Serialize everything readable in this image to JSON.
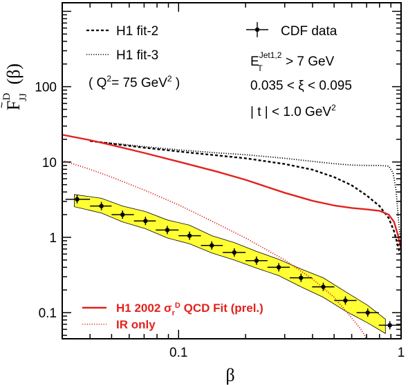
{
  "chart_data": {
    "type": "line",
    "x_scale": "log",
    "y_scale": "log",
    "xlim": [
      0.03,
      1.0
    ],
    "ylim": [
      0.045,
      1300
    ],
    "xlabel": "β",
    "ylabel": "F̃JJD (β)",
    "x_ticks": [
      {
        "value": 0.1,
        "label": "0.1"
      },
      {
        "value": 1,
        "label": "1"
      }
    ],
    "y_ticks": [
      {
        "value": 0.1,
        "label": "0.1"
      },
      {
        "value": 1,
        "label": "1"
      },
      {
        "value": 10,
        "label": "10"
      },
      {
        "value": 100,
        "label": "100"
      }
    ],
    "legend_top_left": [
      {
        "label": "H1 fit-2",
        "style": "dashed"
      },
      {
        "label": "H1 fit-3",
        "style": "dotted"
      },
      {
        "label": "( Q²= 75 GeV² )",
        "style": "none"
      }
    ],
    "legend_top_right": [
      {
        "label": "CDF data",
        "style": "marker"
      },
      {
        "label": "E_T^Jet1,2 > 7 GeV",
        "style": "none"
      },
      {
        "label": "0.035 < ξ < 0.095",
        "style": "none"
      },
      {
        "label": "| t | < 1.0 GeV²",
        "style": "none"
      }
    ],
    "legend_bottom": [
      {
        "label": "H1 2002 σrD QCD Fit (prel.)",
        "style": "solid"
      },
      {
        "label": "IR only",
        "style": "dotted"
      }
    ],
    "series": [
      {
        "name": "CDF data",
        "kind": "points",
        "x": [
          0.035,
          0.045,
          0.056,
          0.071,
          0.089,
          0.112,
          0.141,
          0.178,
          0.224,
          0.282,
          0.355,
          0.447,
          0.562,
          0.708,
          0.89
        ],
        "y": [
          3.2,
          2.6,
          2.0,
          1.65,
          1.25,
          1.05,
          0.78,
          0.63,
          0.49,
          0.4,
          0.29,
          0.22,
          0.145,
          0.1,
          0.068
        ],
        "xerr_low": [
          0.031,
          0.04,
          0.05,
          0.063,
          0.079,
          0.1,
          0.126,
          0.158,
          0.2,
          0.251,
          0.316,
          0.398,
          0.501,
          0.631,
          0.794
        ],
        "xerr_high": [
          0.04,
          0.05,
          0.063,
          0.079,
          0.1,
          0.126,
          0.158,
          0.2,
          0.251,
          0.316,
          0.398,
          0.501,
          0.631,
          0.794,
          1.0
        ],
        "color": "#000000"
      },
      {
        "name": "CDF uncertainty band",
        "kind": "band",
        "x": [
          0.034,
          0.045,
          0.056,
          0.071,
          0.089,
          0.112,
          0.141,
          0.178,
          0.224,
          0.282,
          0.355,
          0.447,
          0.562,
          0.708,
          0.85
        ],
        "y_low": [
          2.55,
          2.1,
          1.6,
          1.3,
          0.98,
          0.82,
          0.62,
          0.5,
          0.39,
          0.31,
          0.22,
          0.16,
          0.105,
          0.073,
          0.053
        ],
        "y_high": [
          3.7,
          3.3,
          2.6,
          2.2,
          1.7,
          1.45,
          1.05,
          0.85,
          0.65,
          0.51,
          0.38,
          0.29,
          0.19,
          0.125,
          0.082
        ],
        "color": "#ffff33"
      },
      {
        "name": "H1 fit-2",
        "kind": "line",
        "style": "dashed",
        "x": [
          0.04,
          0.05,
          0.07,
          0.1,
          0.15,
          0.2,
          0.3,
          0.4,
          0.5,
          0.6,
          0.7,
          0.8,
          0.88,
          0.93,
          0.97,
          0.99
        ],
        "y": [
          19,
          17.5,
          15.5,
          13.8,
          12.2,
          11.2,
          9.4,
          7.9,
          6.3,
          4.9,
          3.6,
          2.6,
          1.8,
          1.2,
          0.75,
          0.6
        ],
        "color": "#000000"
      },
      {
        "name": "H1 fit-3",
        "kind": "line",
        "style": "dotted",
        "x": [
          0.04,
          0.05,
          0.07,
          0.1,
          0.15,
          0.2,
          0.3,
          0.4,
          0.5,
          0.6,
          0.7,
          0.8,
          0.88,
          0.92,
          0.95,
          0.97,
          0.99
        ],
        "y": [
          19,
          17.8,
          16,
          14.5,
          13.2,
          12.5,
          11.2,
          10.2,
          9.5,
          9.1,
          9.0,
          9.0,
          8.8,
          7.2,
          4.2,
          1.9,
          1.0
        ],
        "color": "#000000"
      },
      {
        "name": "H1 2002 σrD QCD Fit (prel.)",
        "kind": "line",
        "style": "solid",
        "x": [
          0.03,
          0.04,
          0.05,
          0.07,
          0.1,
          0.15,
          0.2,
          0.3,
          0.4,
          0.5,
          0.6,
          0.7,
          0.8,
          0.88,
          0.93,
          0.97,
          1.0
        ],
        "y": [
          23,
          19.5,
          16.8,
          13.2,
          10.1,
          7.4,
          5.8,
          3.9,
          3.05,
          2.65,
          2.45,
          2.35,
          2.25,
          2.0,
          1.6,
          1.05,
          0.7
        ],
        "color": "#e3211c"
      },
      {
        "name": "IR only",
        "kind": "line",
        "style": "dotted",
        "x": [
          0.03,
          0.04,
          0.05,
          0.07,
          0.1,
          0.15,
          0.2,
          0.3,
          0.4,
          0.5,
          0.6,
          0.66,
          0.7
        ],
        "y": [
          10.5,
          8.0,
          6.3,
          4.25,
          2.7,
          1.5,
          0.98,
          0.5,
          0.28,
          0.16,
          0.085,
          0.06,
          0.045
        ],
        "color": "#e3211c"
      }
    ]
  }
}
